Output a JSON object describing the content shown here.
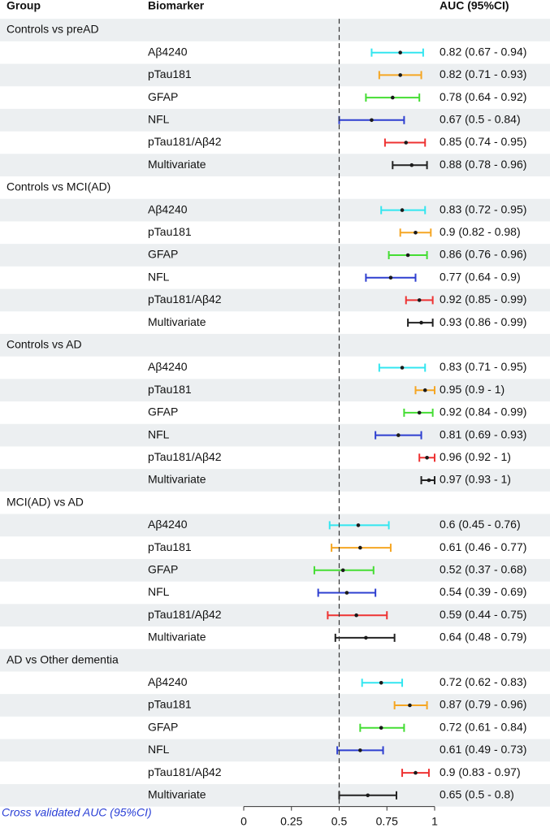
{
  "chart_data": {
    "type": "forest",
    "headers": [
      "Group",
      "Biomarker",
      "AUC (95%CI)"
    ],
    "caption": "Cross validated AUC (95%CI)",
    "xlim": [
      0,
      1
    ],
    "xticks": [
      0,
      0.25,
      0.5,
      0.75,
      1
    ],
    "ref_line": 0.5,
    "groups": [
      {
        "name": "Controls vs preAD",
        "rows": [
          {
            "name": "Aβ4240",
            "color": "#33e6f0",
            "value": 0.82,
            "lower": 0.67,
            "upper": 0.94,
            "label": "0.82 (0.67 - 0.94)"
          },
          {
            "name": "pTau181",
            "color": "#f5a623",
            "value": 0.82,
            "lower": 0.71,
            "upper": 0.93,
            "label": "0.82 (0.71 - 0.93)"
          },
          {
            "name": "GFAP",
            "color": "#44dd33",
            "value": 0.78,
            "lower": 0.64,
            "upper": 0.92,
            "label": "0.78 (0.64 - 0.92)"
          },
          {
            "name": "NFL",
            "color": "#2e3fd0",
            "value": 0.67,
            "lower": 0.5,
            "upper": 0.84,
            "label": "0.67 (0.5 - 0.84)"
          },
          {
            "name": "pTau181/Aβ42",
            "color": "#ee3333",
            "value": 0.85,
            "lower": 0.74,
            "upper": 0.95,
            "label": "0.85 (0.74 - 0.95)"
          },
          {
            "name": "Multivariate",
            "color": "#222222",
            "value": 0.88,
            "lower": 0.78,
            "upper": 0.96,
            "label": "0.88 (0.78 - 0.96)"
          }
        ]
      },
      {
        "name": "Controls vs MCI(AD)",
        "rows": [
          {
            "name": "Aβ4240",
            "color": "#33e6f0",
            "value": 0.83,
            "lower": 0.72,
            "upper": 0.95,
            "label": "0.83 (0.72 - 0.95)"
          },
          {
            "name": "pTau181",
            "color": "#f5a623",
            "value": 0.9,
            "lower": 0.82,
            "upper": 0.98,
            "label": "0.9 (0.82 - 0.98)"
          },
          {
            "name": "GFAP",
            "color": "#44dd33",
            "value": 0.86,
            "lower": 0.76,
            "upper": 0.96,
            "label": "0.86 (0.76 - 0.96)"
          },
          {
            "name": "NFL",
            "color": "#2e3fd0",
            "value": 0.77,
            "lower": 0.64,
            "upper": 0.9,
            "label": "0.77 (0.64 - 0.9)"
          },
          {
            "name": "pTau181/Aβ42",
            "color": "#ee3333",
            "value": 0.92,
            "lower": 0.85,
            "upper": 0.99,
            "label": "0.92 (0.85 - 0.99)"
          },
          {
            "name": "Multivariate",
            "color": "#222222",
            "value": 0.93,
            "lower": 0.86,
            "upper": 0.99,
            "label": "0.93 (0.86 - 0.99)"
          }
        ]
      },
      {
        "name": "Controls vs AD",
        "rows": [
          {
            "name": "Aβ4240",
            "color": "#33e6f0",
            "value": 0.83,
            "lower": 0.71,
            "upper": 0.95,
            "label": "0.83 (0.71 - 0.95)"
          },
          {
            "name": "pTau181",
            "color": "#f5a623",
            "value": 0.95,
            "lower": 0.9,
            "upper": 1,
            "label": "0.95 (0.9 - 1)"
          },
          {
            "name": "GFAP",
            "color": "#44dd33",
            "value": 0.92,
            "lower": 0.84,
            "upper": 0.99,
            "label": "0.92 (0.84 - 0.99)"
          },
          {
            "name": "NFL",
            "color": "#2e3fd0",
            "value": 0.81,
            "lower": 0.69,
            "upper": 0.93,
            "label": "0.81 (0.69 - 0.93)"
          },
          {
            "name": "pTau181/Aβ42",
            "color": "#ee3333",
            "value": 0.96,
            "lower": 0.92,
            "upper": 1,
            "label": "0.96 (0.92 - 1)"
          },
          {
            "name": "Multivariate",
            "color": "#222222",
            "value": 0.97,
            "lower": 0.93,
            "upper": 1,
            "label": "0.97 (0.93 - 1)"
          }
        ]
      },
      {
        "name": "MCI(AD) vs AD",
        "rows": [
          {
            "name": "Aβ4240",
            "color": "#33e6f0",
            "value": 0.6,
            "lower": 0.45,
            "upper": 0.76,
            "label": "0.6 (0.45 - 0.76)"
          },
          {
            "name": "pTau181",
            "color": "#f5a623",
            "value": 0.61,
            "lower": 0.46,
            "upper": 0.77,
            "label": "0.61 (0.46 - 0.77)"
          },
          {
            "name": "GFAP",
            "color": "#44dd33",
            "value": 0.52,
            "lower": 0.37,
            "upper": 0.68,
            "label": "0.52 (0.37 - 0.68)"
          },
          {
            "name": "NFL",
            "color": "#2e3fd0",
            "value": 0.54,
            "lower": 0.39,
            "upper": 0.69,
            "label": "0.54 (0.39 - 0.69)"
          },
          {
            "name": "pTau181/Aβ42",
            "color": "#ee3333",
            "value": 0.59,
            "lower": 0.44,
            "upper": 0.75,
            "label": "0.59 (0.44 - 0.75)"
          },
          {
            "name": "Multivariate",
            "color": "#222222",
            "value": 0.64,
            "lower": 0.48,
            "upper": 0.79,
            "label": "0.64 (0.48 - 0.79)"
          }
        ]
      },
      {
        "name": "AD vs Other dementia",
        "rows": [
          {
            "name": "Aβ4240",
            "color": "#33e6f0",
            "value": 0.72,
            "lower": 0.62,
            "upper": 0.83,
            "label": "0.72 (0.62 - 0.83)"
          },
          {
            "name": "pTau181",
            "color": "#f5a623",
            "value": 0.87,
            "lower": 0.79,
            "upper": 0.96,
            "label": "0.87 (0.79 - 0.96)"
          },
          {
            "name": "GFAP",
            "color": "#44dd33",
            "value": 0.72,
            "lower": 0.61,
            "upper": 0.84,
            "label": "0.72 (0.61 - 0.84)"
          },
          {
            "name": "NFL",
            "color": "#2e3fd0",
            "value": 0.61,
            "lower": 0.49,
            "upper": 0.73,
            "label": "0.61 (0.49 - 0.73)"
          },
          {
            "name": "pTau181/Aβ42",
            "color": "#ee3333",
            "value": 0.9,
            "lower": 0.83,
            "upper": 0.97,
            "label": "0.9 (0.83 - 0.97)"
          },
          {
            "name": "Multivariate",
            "color": "#222222",
            "value": 0.65,
            "lower": 0.5,
            "upper": 0.8,
            "label": "0.65 (0.5 - 0.8)"
          }
        ]
      }
    ]
  }
}
